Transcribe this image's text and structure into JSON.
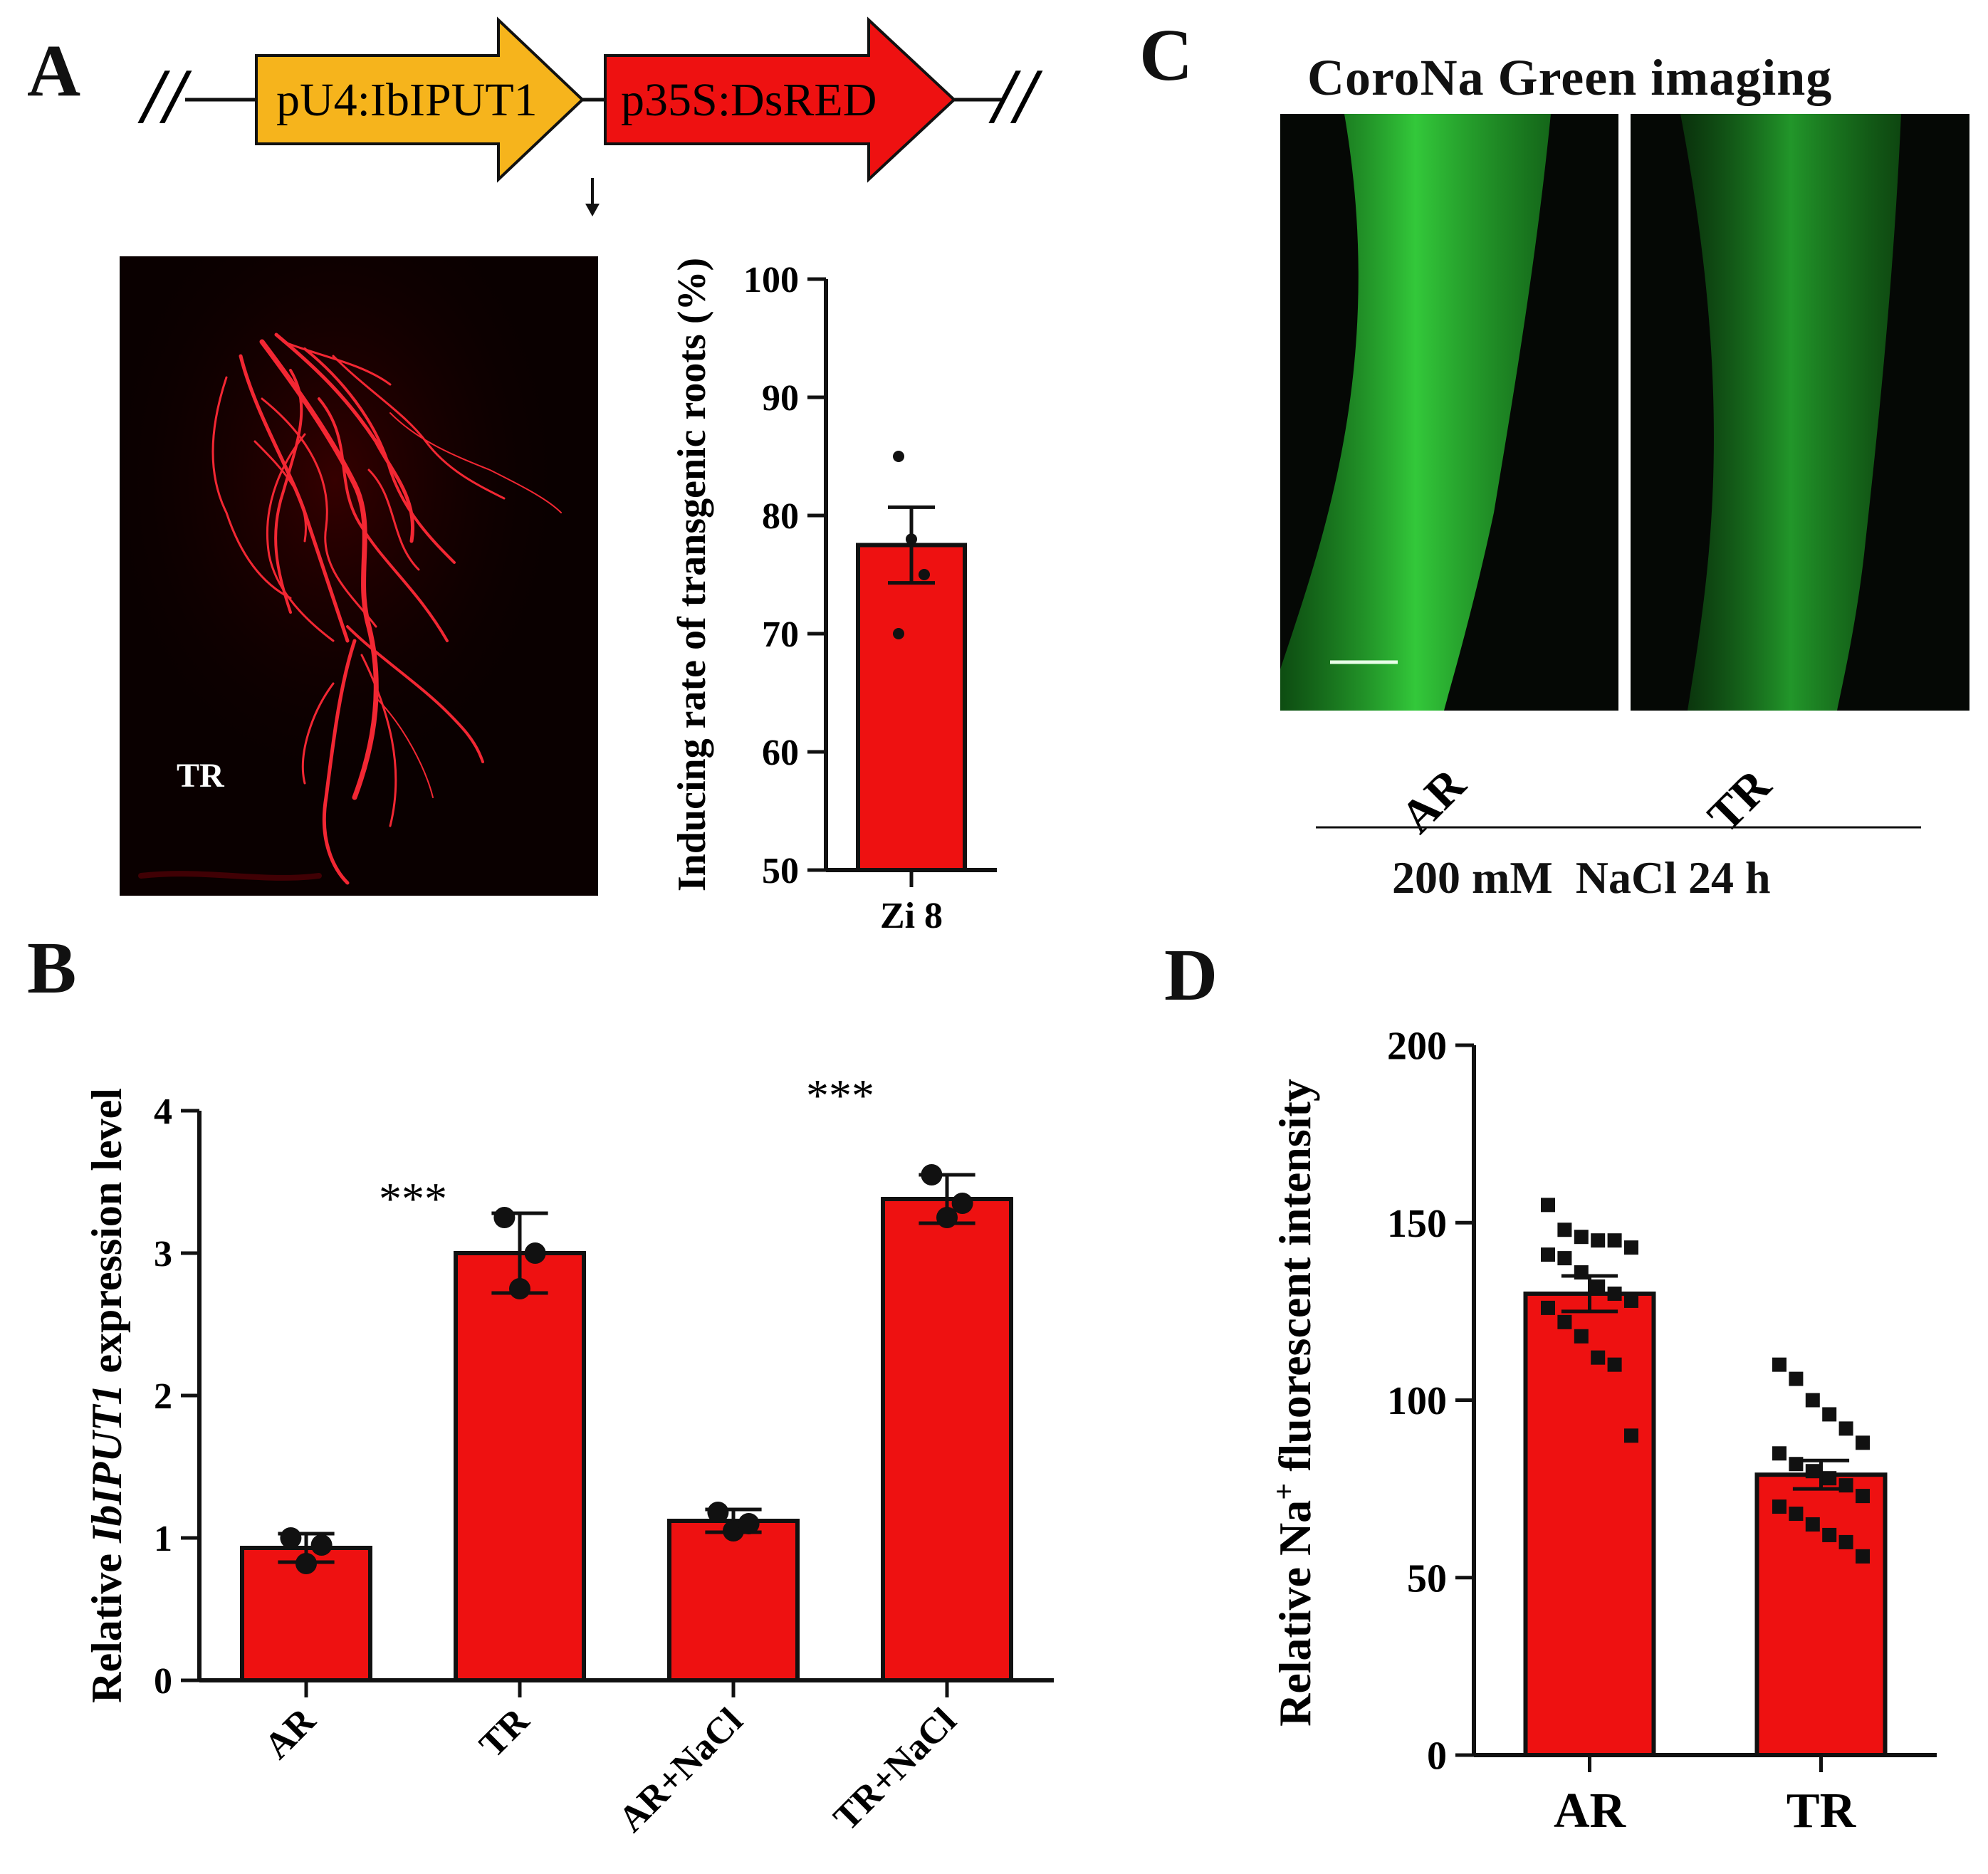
{
  "panels": {
    "a": "A",
    "b": "B",
    "c": "C",
    "d": "D"
  },
  "construct": {
    "promoter1": "pU4:IbIPUT1",
    "promoter2": "p35S:DsRED",
    "break_left": "//",
    "break_right": "//",
    "colors": {
      "promoter1": "#f6b41c",
      "promoter2": "#ee1111"
    }
  },
  "root_image": {
    "label": "TR",
    "background": "#0a0000",
    "root_color": "#ff2a36"
  },
  "coronal": {
    "title": "CoroNa Green imaging",
    "labels": [
      "AR",
      "TR"
    ],
    "condition": "200 mM  NaCl 24 h",
    "fluor_color": "#2fae35"
  },
  "chart_data": [
    {
      "id": "A-right",
      "type": "bar",
      "categories": [
        "Zi 8"
      ],
      "values": [
        77.5
      ],
      "error": [
        3.2
      ],
      "points": [
        [
          85,
          78,
          75,
          70
        ]
      ],
      "xlabel": "",
      "ylabel": "Inducing rate of transgenic roots (%)",
      "ylim": [
        50,
        100
      ],
      "yticks": [
        50,
        60,
        70,
        80,
        90,
        100
      ],
      "bar_color": "#ee1111",
      "grid": false
    },
    {
      "id": "B",
      "type": "bar",
      "categories": [
        "AR",
        "TR",
        "AR+NaCl",
        "TR+NaCl"
      ],
      "values": [
        0.93,
        3.0,
        1.12,
        3.38
      ],
      "error": [
        0.1,
        0.28,
        0.08,
        0.17
      ],
      "points": [
        [
          1.0,
          0.82,
          0.95
        ],
        [
          3.25,
          2.75,
          3.0
        ],
        [
          1.18,
          1.05,
          1.1
        ],
        [
          3.55,
          3.25,
          3.35
        ]
      ],
      "significance": [
        {
          "text": "***",
          "x_between": [
            0,
            1
          ]
        },
        {
          "text": "***",
          "x_between": [
            2,
            3
          ]
        }
      ],
      "ylabel_prefix": "Relative ",
      "ylabel_gene": "IbIPUT1",
      "ylabel_suffix": " expression level",
      "ylim": [
        0,
        4
      ],
      "yticks": [
        0,
        1,
        2,
        3,
        4
      ],
      "bar_color": "#ee1111",
      "grid": false
    },
    {
      "id": "D",
      "type": "bar",
      "categories": [
        "AR",
        "TR"
      ],
      "values": [
        130,
        79
      ],
      "error": [
        5,
        4
      ],
      "points": [
        [
          155,
          148,
          146,
          145,
          145,
          143,
          141,
          140,
          136,
          132,
          130,
          128,
          126,
          122,
          118,
          112,
          110,
          90
        ],
        [
          110,
          106,
          100,
          96,
          92,
          88,
          85,
          82,
          80,
          78,
          76,
          73,
          70,
          68,
          65,
          62,
          60,
          56
        ]
      ],
      "ylabel_prefix": "Relative Na",
      "ylabel_sup": "+",
      "ylabel_suffix": " fluorescent intensity",
      "ylim": [
        0,
        200
      ],
      "yticks": [
        0,
        50,
        100,
        150,
        200
      ],
      "bar_color": "#ee1111",
      "grid": false
    }
  ]
}
